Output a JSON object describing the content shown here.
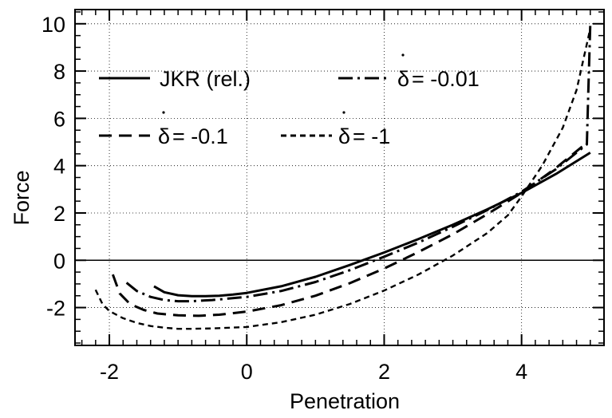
{
  "chart_data": {
    "type": "line",
    "xlabel": "Penetration",
    "ylabel": "Force",
    "xlim": [
      -2.5,
      5.2
    ],
    "ylim": [
      -3.6,
      10.6
    ],
    "x_ticks": [
      -2,
      0,
      2,
      4
    ],
    "y_ticks": [
      -2,
      0,
      2,
      4,
      6,
      8,
      10
    ],
    "x_minor_step": 0.2,
    "y_minor_step": 0.5,
    "grid": "dotted",
    "zero_line": true,
    "legend_position": "top",
    "series": [
      {
        "name": "JKR (rel.)",
        "symbol": "",
        "dash": "solid",
        "x": [
          -1.35,
          -1.2,
          -1.0,
          -0.8,
          -0.6,
          -0.4,
          -0.2,
          0.0,
          0.5,
          1.0,
          1.5,
          2.0,
          2.5,
          3.0,
          3.5,
          4.0,
          4.5,
          5.0
        ],
        "y": [
          -1.1,
          -1.35,
          -1.48,
          -1.52,
          -1.52,
          -1.5,
          -1.45,
          -1.38,
          -1.1,
          -0.7,
          -0.2,
          0.33,
          0.9,
          1.5,
          2.15,
          2.85,
          3.65,
          4.55
        ]
      },
      {
        "name": "= -0.01",
        "symbol": "δ",
        "dash": "dashdot",
        "x": [
          -1.75,
          -1.6,
          -1.4,
          -1.2,
          -1.0,
          -0.8,
          -0.5,
          0.0,
          0.5,
          1.0,
          1.5,
          2.0,
          2.5,
          3.0,
          3.5,
          4.0,
          4.5,
          4.95,
          4.97,
          5.0
        ],
        "y": [
          -0.95,
          -1.3,
          -1.55,
          -1.68,
          -1.73,
          -1.73,
          -1.68,
          -1.55,
          -1.3,
          -0.92,
          -0.42,
          0.15,
          0.75,
          1.42,
          2.12,
          2.9,
          3.85,
          4.9,
          7.0,
          10.0
        ]
      },
      {
        "name": "= -0.1",
        "symbol": "δ",
        "dash": "dashed",
        "x": [
          -1.95,
          -1.85,
          -1.7,
          -1.5,
          -1.3,
          -1.0,
          -0.7,
          -0.4,
          0.0,
          0.5,
          1.0,
          1.5,
          2.0,
          2.5,
          3.0,
          3.5,
          4.0,
          4.5,
          4.9
        ],
        "y": [
          -0.6,
          -1.4,
          -1.85,
          -2.1,
          -2.25,
          -2.33,
          -2.35,
          -2.3,
          -2.17,
          -1.9,
          -1.5,
          -0.97,
          -0.35,
          0.35,
          1.1,
          1.95,
          2.85,
          3.9,
          4.85
        ]
      },
      {
        "name": "= -1",
        "symbol": "δ",
        "dash": "short-dash",
        "x": [
          -2.2,
          -2.1,
          -2.0,
          -1.8,
          -1.6,
          -1.4,
          -1.2,
          -1.0,
          -0.8,
          -0.5,
          0.0,
          0.5,
          1.0,
          1.5,
          2.0,
          2.5,
          3.0,
          3.5,
          3.8,
          4.0,
          4.3,
          4.6,
          4.8,
          5.0
        ],
        "y": [
          -1.25,
          -1.85,
          -2.15,
          -2.45,
          -2.65,
          -2.78,
          -2.85,
          -2.9,
          -2.9,
          -2.88,
          -2.82,
          -2.62,
          -2.3,
          -1.85,
          -1.28,
          -0.6,
          0.2,
          1.15,
          1.9,
          2.7,
          4.0,
          5.6,
          7.2,
          9.8
        ]
      }
    ]
  }
}
